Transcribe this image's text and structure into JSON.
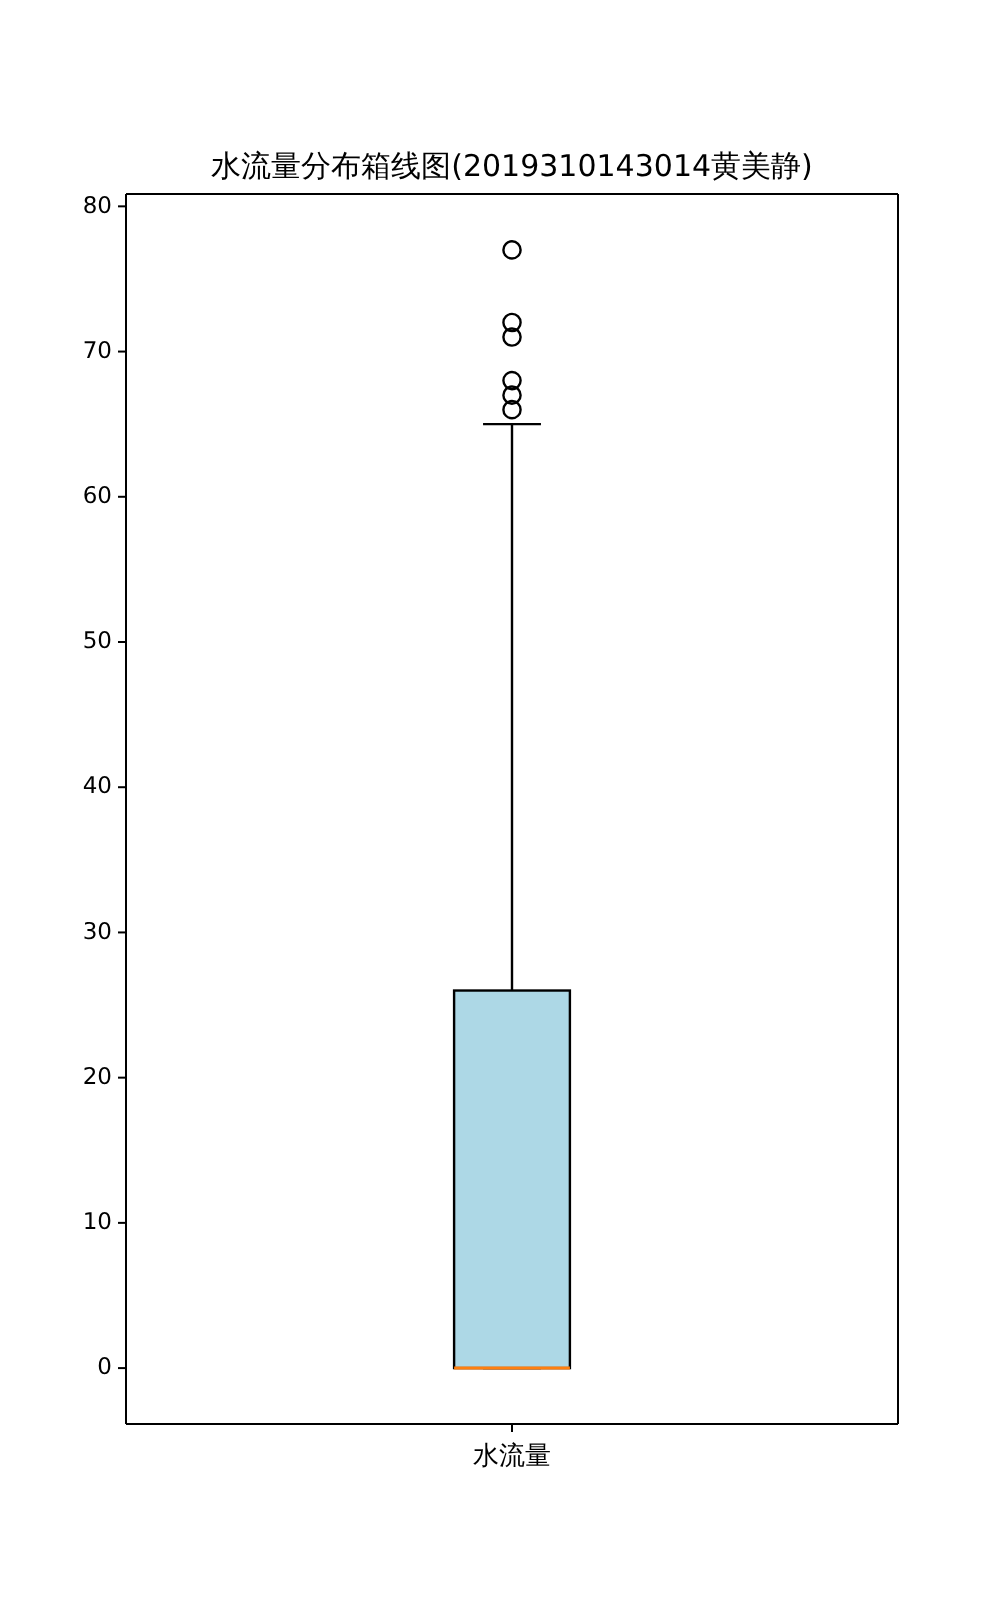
{
  "chart_data": {
    "type": "box",
    "title": "水流量分布箱线图(2019310143014黄美静)",
    "categories": [
      "水流量"
    ],
    "boxes": [
      {
        "low": 0,
        "q1": 0,
        "median": 0,
        "q3": 26,
        "high": 65,
        "outliers": [
          77,
          72,
          71,
          68,
          67,
          66
        ]
      }
    ],
    "colors": [
      "#add8e6"
    ],
    "ylim": [
      -3.85,
      80.85
    ],
    "yticks": [
      0,
      10,
      20,
      30,
      40,
      50,
      60,
      70,
      80
    ]
  }
}
